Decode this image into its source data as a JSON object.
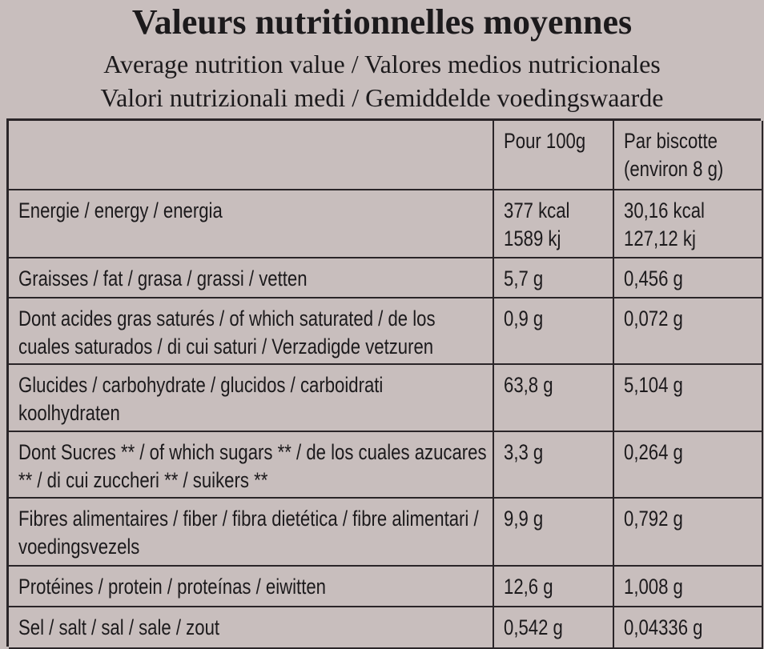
{
  "header": {
    "title": "Valeurs nutritionnelles moyennes",
    "subtitles": [
      "Average nutrition value / Valores medios nutricionales",
      "Valori nutrizionali medi / Gemiddelde voedingswaarde"
    ]
  },
  "table": {
    "column_headers": [
      "Pour 100g",
      "Par biscotte\n(environ 8 g)"
    ],
    "rows": [
      [
        "Energie / energy / energia",
        "377 kcal\n1589 kj",
        "30,16 kcal\n127,12 kj"
      ],
      [
        "Graisses / fat / grasa / grassi / vetten",
        "5,7 g",
        "0,456 g"
      ],
      [
        "Dont acides gras saturés / of which saturated / de los cuales saturados / di cui saturi / Verzadigde vetzuren",
        "0,9 g",
        "0,072 g"
      ],
      [
        "Glucides / carbohydrate / glucidos / carboidrati koolhydraten",
        "63,8 g",
        "5,104 g"
      ],
      [
        "Dont Sucres ** / of which sugars ** / de los cuales azucares ** / di cui zuccheri ** / suikers **",
        "3,3 g",
        "0,264 g"
      ],
      [
        "Fibres alimentaires / fiber / fibra dietética / fibre alimentari / voedingsvezels",
        "9,9 g",
        "0,792 g"
      ],
      [
        "Protéines / protein / proteínas / eiwitten",
        "12,6 g",
        "1,008 g"
      ],
      [
        "Sel / salt / sal / sale / zout",
        "0,542 g",
        "0,04336 g"
      ]
    ]
  }
}
